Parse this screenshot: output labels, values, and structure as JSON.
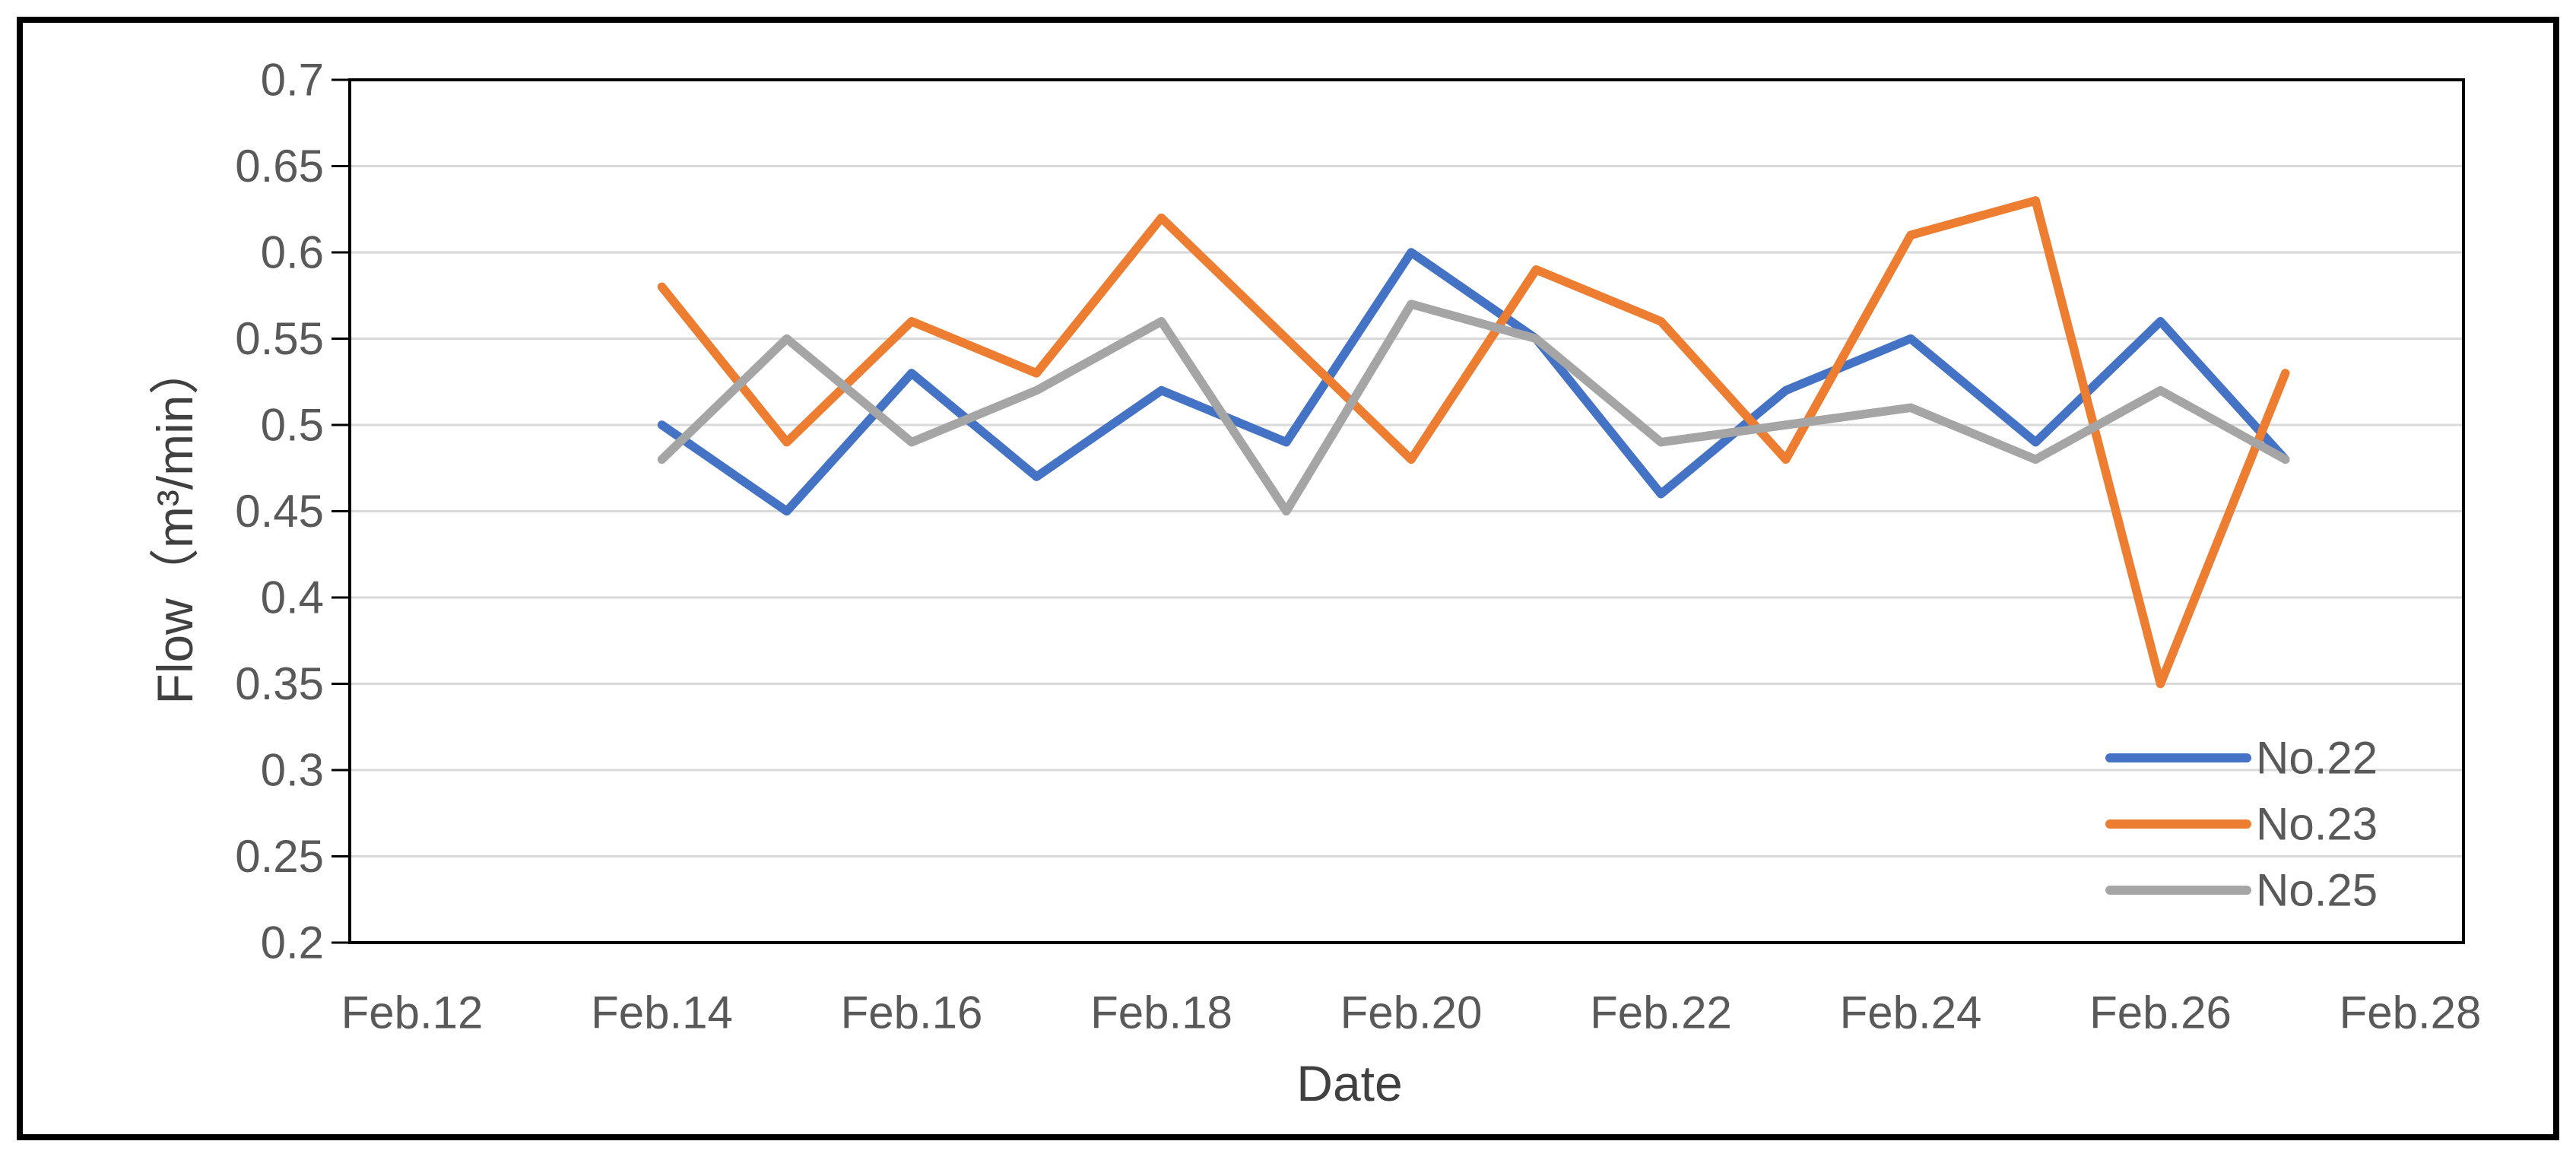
{
  "page": {
    "background": "#ffffff",
    "frame_border_color": "#000000"
  },
  "chart_data": {
    "type": "line",
    "title": "",
    "xlabel": "Date",
    "ylabel": "Flow（m³/min）",
    "ylim": [
      0.2,
      0.7
    ],
    "ytick_step": 0.05,
    "y_tick_labels": [
      "0.7",
      "0.65",
      "0.6",
      "0.55",
      "0.5",
      "0.45",
      "0.4",
      "0.35",
      "0.3",
      "0.25",
      "0.2"
    ],
    "x_axis_labels": [
      "Feb.12",
      "Feb.14",
      "Feb.16",
      "Feb.18",
      "Feb.20",
      "Feb.22",
      "Feb.24",
      "Feb.26",
      "Feb.28"
    ],
    "categories": [
      "Feb.14",
      "Feb.15",
      "Feb.16",
      "Feb.17",
      "Feb.18",
      "Feb.19",
      "Feb.20",
      "Feb.21",
      "Feb.22",
      "Feb.23",
      "Feb.24",
      "Feb.25",
      "Feb.26",
      "Feb.27"
    ],
    "series": [
      {
        "name": "No.22",
        "color": "#4472C4",
        "values": [
          0.5,
          0.45,
          0.53,
          0.47,
          0.52,
          0.49,
          0.6,
          0.55,
          0.46,
          0.52,
          0.55,
          0.49,
          0.56,
          0.48
        ]
      },
      {
        "name": "No.23",
        "color": "#ED7D31",
        "values": [
          0.58,
          0.49,
          0.56,
          0.53,
          0.62,
          0.55,
          0.48,
          0.59,
          0.56,
          0.48,
          0.61,
          0.63,
          0.35,
          0.53
        ]
      },
      {
        "name": "No.25",
        "color": "#A5A5A5",
        "values": [
          0.48,
          0.55,
          0.49,
          0.52,
          0.56,
          0.45,
          0.57,
          0.55,
          0.49,
          0.5,
          0.51,
          0.48,
          0.52,
          0.48
        ]
      }
    ],
    "legend": {
      "position": "inside-bottom-right"
    },
    "grid": true,
    "styles": {
      "gridline_color": "#D9D9D9",
      "axis_color": "#000000",
      "tick_label_color": "#595959",
      "axis_title_color": "#404040"
    }
  }
}
